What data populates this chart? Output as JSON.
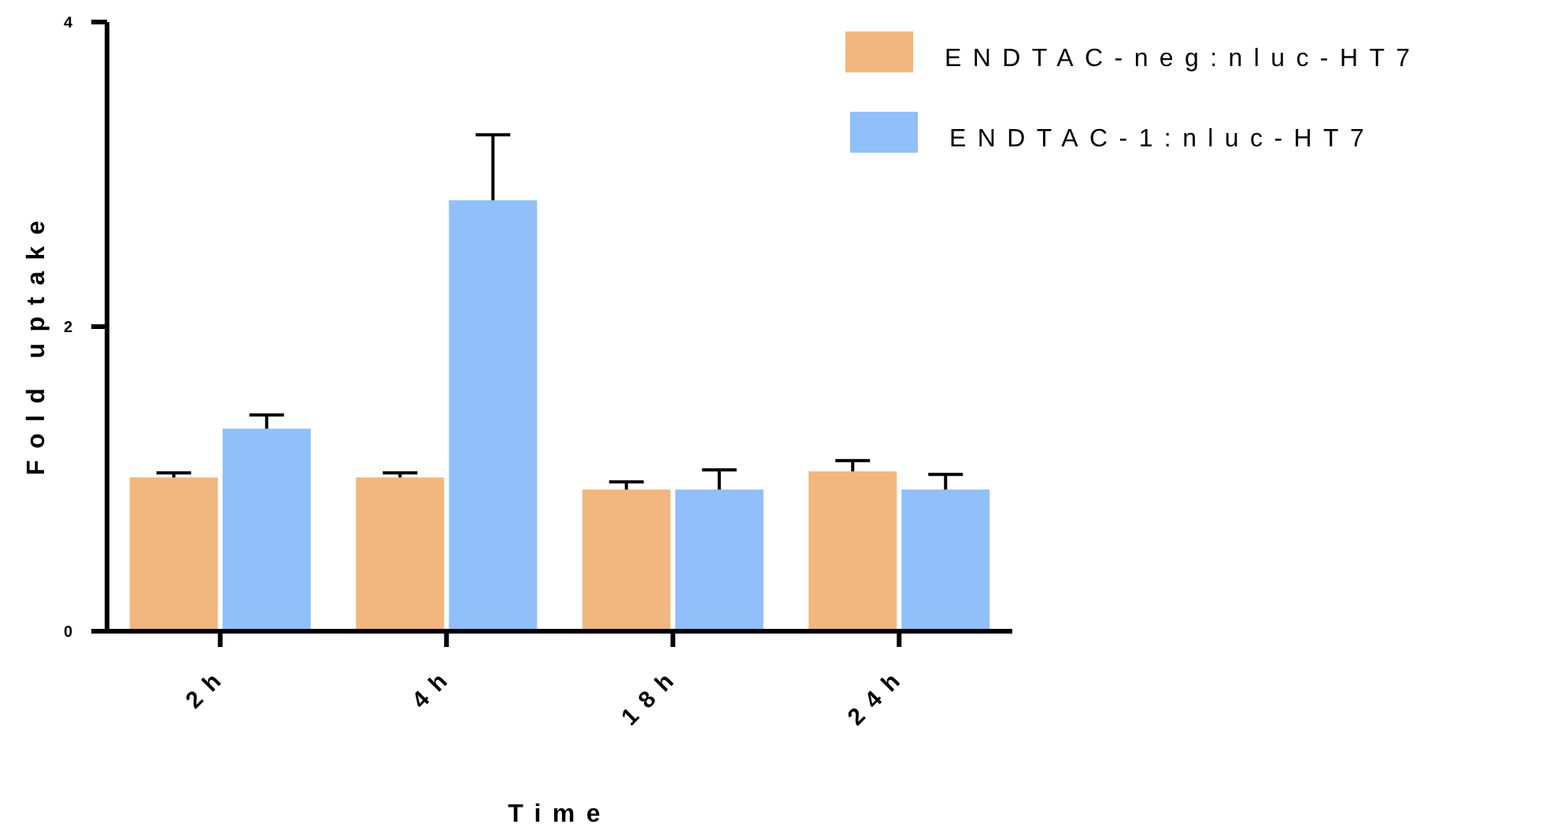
{
  "chart_data": {
    "type": "bar",
    "xlabel": "Time",
    "ylabel": "Fold uptake",
    "categories": [
      "2h",
      "4h",
      "18h",
      "24h"
    ],
    "series": [
      {
        "name": "ENDTAC-neg:nluc-HT7",
        "color": "#f1b77e",
        "values": [
          1.01,
          1.01,
          0.93,
          1.05
        ],
        "errors": [
          0.03,
          0.03,
          0.05,
          0.07
        ]
      },
      {
        "name": "ENDTAC-1:nluc-HT7",
        "color": "#91bff9",
        "values": [
          1.33,
          2.83,
          0.93,
          0.93
        ],
        "errors": [
          0.09,
          0.43,
          0.13,
          0.1
        ]
      }
    ],
    "ylim": [
      0,
      4
    ],
    "yticks": [
      0,
      2,
      4
    ],
    "grid": false,
    "legend": "top right"
  }
}
